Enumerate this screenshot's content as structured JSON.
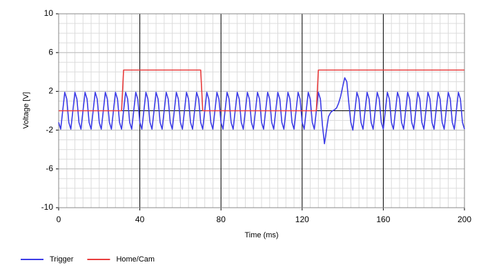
{
  "chart_data": {
    "type": "line",
    "x_label": "Time (ms)",
    "y_label": "Voltage [V]",
    "xlim": [
      0,
      200
    ],
    "xticks": [
      0,
      40,
      80,
      120,
      160,
      200
    ],
    "ylim": [
      -10,
      10
    ],
    "yticks": [
      -10,
      -6,
      -2,
      2,
      6,
      10
    ],
    "grid": true,
    "legend": "bottom-left",
    "x": [
      0,
      1,
      2,
      3,
      4,
      5,
      6,
      7,
      8,
      9,
      10,
      11,
      12,
      13,
      14,
      15,
      16,
      17,
      18,
      19,
      20,
      21,
      22,
      23,
      24,
      25,
      26,
      27,
      28,
      29,
      30,
      31,
      32,
      33,
      34,
      35,
      36,
      37,
      38,
      39,
      40,
      41,
      42,
      43,
      44,
      45,
      46,
      47,
      48,
      49,
      50,
      51,
      52,
      53,
      54,
      55,
      56,
      57,
      58,
      59,
      60,
      61,
      62,
      63,
      64,
      65,
      66,
      67,
      68,
      69,
      70,
      71,
      72,
      73,
      74,
      75,
      76,
      77,
      78,
      79,
      80,
      81,
      82,
      83,
      84,
      85,
      86,
      87,
      88,
      89,
      90,
      91,
      92,
      93,
      94,
      95,
      96,
      97,
      98,
      99,
      100,
      101,
      102,
      103,
      104,
      105,
      106,
      107,
      108,
      109,
      110,
      111,
      112,
      113,
      114,
      115,
      116,
      117,
      118,
      119,
      120,
      121,
      122,
      123,
      124,
      125,
      126,
      127,
      128,
      129,
      130,
      131,
      132,
      133,
      134,
      135,
      136,
      137,
      138,
      139,
      140,
      141,
      142,
      143,
      144,
      145,
      146,
      147,
      148,
      149,
      150,
      151,
      152,
      153,
      154,
      155,
      156,
      157,
      158,
      159,
      160,
      161,
      162,
      163,
      164,
      165,
      166,
      167,
      168,
      169,
      170,
      171,
      172,
      173,
      174,
      175,
      176,
      177,
      178,
      179,
      180,
      181,
      182,
      183,
      184,
      185,
      186,
      187,
      188,
      189,
      190,
      191,
      192,
      193,
      194,
      195,
      196,
      197,
      198,
      199,
      200
    ],
    "series": [
      {
        "name": "Trigger",
        "color": "#3b3be6",
        "values": [
          -1.2,
          -1.9,
          0,
          1.9,
          1.2,
          -1.2,
          -1.9,
          0,
          1.9,
          1.2,
          -1.2,
          -1.9,
          0,
          1.9,
          1.2,
          -1.2,
          -1.9,
          0,
          1.9,
          1.2,
          -1.2,
          -1.9,
          0,
          1.9,
          1.2,
          -1.2,
          -1.9,
          0,
          1.9,
          1.2,
          -1.2,
          -1.9,
          0,
          1.9,
          1.2,
          -1.2,
          -1.9,
          0,
          1.9,
          1.2,
          -1.2,
          -1.9,
          0,
          1.9,
          1.2,
          -1.2,
          -1.9,
          0,
          1.9,
          1.2,
          -1.2,
          -1.9,
          0,
          1.9,
          1.2,
          -1.2,
          -1.9,
          0,
          1.9,
          1.2,
          -1.2,
          -1.9,
          0,
          1.9,
          1.2,
          -1.2,
          -1.9,
          0,
          1.9,
          1.2,
          -1.2,
          -1.9,
          0,
          1.9,
          1.2,
          -1.2,
          -1.9,
          0,
          1.9,
          1.2,
          -1.2,
          -1.9,
          0,
          1.9,
          1.2,
          -1.2,
          -1.9,
          0,
          1.9,
          1.2,
          -1.2,
          -1.9,
          0,
          1.9,
          1.2,
          -1.2,
          -1.9,
          0,
          1.9,
          1.2,
          -1.2,
          -1.9,
          0,
          1.9,
          1.2,
          -1.2,
          -1.9,
          0,
          1.9,
          1.2,
          -1.2,
          -1.9,
          0,
          1.9,
          1.2,
          -1.2,
          -1.9,
          0,
          1.9,
          1.2,
          -1.2,
          -1.9,
          0,
          1.9,
          1.2,
          -1.2,
          -1.9,
          0,
          1.9,
          1.2,
          -1.5,
          -3.4,
          -2.0,
          -0.6,
          -0.2,
          0,
          0.1,
          0.3,
          0.8,
          1.5,
          2.5,
          3.4,
          3.0,
          0.8,
          -1.2,
          -2.0,
          0,
          1.9,
          1.2,
          -1.2,
          -1.9,
          0,
          1.9,
          1.2,
          -1.2,
          -1.9,
          0,
          1.9,
          1.2,
          -1.2,
          -1.9,
          0,
          1.9,
          1.2,
          -1.2,
          -1.9,
          0,
          1.9,
          1.2,
          -1.2,
          -1.9,
          0,
          1.9,
          1.2,
          -1.2,
          -1.9,
          0,
          1.9,
          1.2,
          -1.2,
          -1.9,
          0,
          1.9,
          1.2,
          -1.2,
          -1.9,
          0,
          1.9,
          1.2,
          -1.2,
          -1.9,
          0,
          1.9,
          1.2,
          -1.2,
          -1.9,
          0,
          1.9,
          1.2,
          -1.2,
          -1.9
        ]
      },
      {
        "name": "Home/Cam",
        "color": "#e83c3c",
        "values": [
          0,
          0,
          0,
          0,
          0,
          0,
          0,
          0,
          0,
          0,
          0,
          0,
          0,
          0,
          0,
          0,
          0,
          0,
          0,
          0,
          0,
          0,
          0,
          0,
          0,
          0,
          0,
          0,
          0,
          0,
          0,
          0,
          4.2,
          4.2,
          4.2,
          4.2,
          4.2,
          4.2,
          4.2,
          4.2,
          4.2,
          4.2,
          4.2,
          4.2,
          4.2,
          4.2,
          4.2,
          4.2,
          4.2,
          4.2,
          4.2,
          4.2,
          4.2,
          4.2,
          4.2,
          4.2,
          4.2,
          4.2,
          4.2,
          4.2,
          4.2,
          4.2,
          4.2,
          4.2,
          4.2,
          4.2,
          4.2,
          4.2,
          4.2,
          4.2,
          4.2,
          0,
          0,
          0,
          0,
          0,
          0,
          0,
          0,
          0,
          0,
          0,
          0,
          0,
          0,
          0,
          0,
          0,
          0,
          0,
          0,
          0,
          0,
          0,
          0,
          0,
          0,
          0,
          0,
          0,
          0,
          0,
          0,
          0,
          0,
          0,
          0,
          0,
          0,
          0,
          0,
          0,
          0,
          0,
          0,
          0,
          0,
          0,
          0,
          0,
          0,
          0,
          0,
          0,
          0,
          0,
          0,
          0,
          4.2,
          4.2,
          4.2,
          4.2,
          4.2,
          4.2,
          4.2,
          4.2,
          4.2,
          4.2,
          4.2,
          4.2,
          4.2,
          4.2,
          4.2,
          4.2,
          4.2,
          4.2,
          4.2,
          4.2,
          4.2,
          4.2,
          4.2,
          4.2,
          4.2,
          4.2,
          4.2,
          4.2,
          4.2,
          4.2,
          4.2,
          4.2,
          4.2,
          4.2,
          4.2,
          4.2,
          4.2,
          4.2,
          4.2,
          4.2,
          4.2,
          4.2,
          4.2,
          4.2,
          4.2,
          4.2,
          4.2,
          4.2,
          4.2,
          4.2,
          4.2,
          4.2,
          4.2,
          4.2,
          4.2,
          4.2,
          4.2,
          4.2,
          4.2,
          4.2,
          4.2,
          4.2,
          4.2,
          4.2,
          4.2,
          4.2,
          4.2,
          4.2,
          4.2,
          4.2,
          4.2,
          4.2,
          4.2
        ]
      }
    ]
  }
}
